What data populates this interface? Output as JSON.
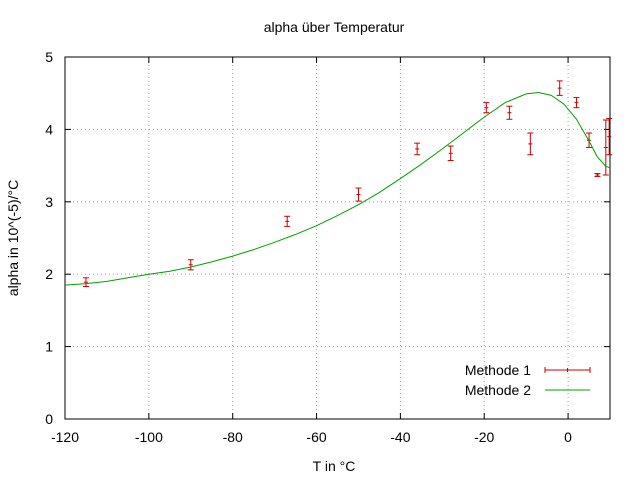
{
  "chart_data": {
    "type": "line",
    "title": "alpha über Temperatur",
    "xlabel": "T in °C",
    "ylabel": "alpha in 10^(-5)/°C",
    "xlim": [
      -120,
      10
    ],
    "ylim": [
      0,
      5
    ],
    "xticks": [
      -120,
      -100,
      -80,
      -60,
      -40,
      -20,
      0
    ],
    "yticks": [
      0,
      1,
      2,
      3,
      4,
      5
    ],
    "grid": true,
    "legend_position": "bottom-right",
    "series": [
      {
        "name": "Methode 1",
        "style": "errorbars",
        "color": "#cc0000",
        "points": [
          {
            "x": -115,
            "y": 1.89,
            "err": 0.06
          },
          {
            "x": -90,
            "y": 2.13,
            "err": 0.07
          },
          {
            "x": -67,
            "y": 2.73,
            "err": 0.07
          },
          {
            "x": -50,
            "y": 3.1,
            "err": 0.09
          },
          {
            "x": -36,
            "y": 3.73,
            "err": 0.08
          },
          {
            "x": -28,
            "y": 3.67,
            "err": 0.1
          },
          {
            "x": -19.5,
            "y": 4.3,
            "err": 0.07
          },
          {
            "x": -14,
            "y": 4.23,
            "err": 0.09
          },
          {
            "x": -9,
            "y": 3.8,
            "err": 0.15
          },
          {
            "x": -2,
            "y": 4.57,
            "err": 0.1
          },
          {
            "x": 2,
            "y": 4.37,
            "err": 0.07
          },
          {
            "x": 5,
            "y": 3.85,
            "err": 0.1
          },
          {
            "x": 7,
            "y": 3.37,
            "err": 0.02
          },
          {
            "x": 9,
            "y": 3.75,
            "err": 0.38
          },
          {
            "x": 9.8,
            "y": 3.9,
            "err": 0.25
          }
        ]
      },
      {
        "name": "Methode 2",
        "style": "line",
        "color": "#00a000",
        "points": [
          {
            "x": -120,
            "y": 1.85
          },
          {
            "x": -115,
            "y": 1.87
          },
          {
            "x": -110,
            "y": 1.9
          },
          {
            "x": -105,
            "y": 1.95
          },
          {
            "x": -100,
            "y": 2.0
          },
          {
            "x": -95,
            "y": 2.04
          },
          {
            "x": -90,
            "y": 2.1
          },
          {
            "x": -85,
            "y": 2.17
          },
          {
            "x": -80,
            "y": 2.25
          },
          {
            "x": -75,
            "y": 2.34
          },
          {
            "x": -70,
            "y": 2.44
          },
          {
            "x": -65,
            "y": 2.55
          },
          {
            "x": -60,
            "y": 2.67
          },
          {
            "x": -55,
            "y": 2.81
          },
          {
            "x": -50,
            "y": 2.96
          },
          {
            "x": -45,
            "y": 3.13
          },
          {
            "x": -40,
            "y": 3.32
          },
          {
            "x": -35,
            "y": 3.52
          },
          {
            "x": -30,
            "y": 3.73
          },
          {
            "x": -25,
            "y": 3.95
          },
          {
            "x": -20,
            "y": 4.17
          },
          {
            "x": -15,
            "y": 4.37
          },
          {
            "x": -10,
            "y": 4.49
          },
          {
            "x": -7,
            "y": 4.51
          },
          {
            "x": -4,
            "y": 4.47
          },
          {
            "x": -1,
            "y": 4.35
          },
          {
            "x": 2,
            "y": 4.14
          },
          {
            "x": 5,
            "y": 3.84
          },
          {
            "x": 7,
            "y": 3.62
          },
          {
            "x": 9,
            "y": 3.49
          },
          {
            "x": 10,
            "y": 3.47
          }
        ]
      }
    ]
  }
}
